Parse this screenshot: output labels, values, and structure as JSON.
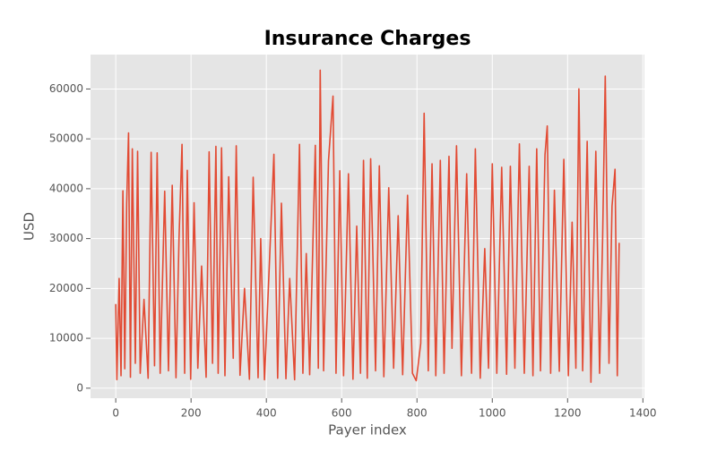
{
  "chart_data": {
    "type": "line",
    "title": "Insurance Charges",
    "xlabel": "Payer index",
    "ylabel": "USD",
    "x": [
      0,
      3,
      9,
      14,
      19,
      24,
      29,
      34,
      39,
      44,
      52,
      58,
      65,
      75,
      86,
      94,
      103,
      110,
      118,
      130,
      140,
      150,
      160,
      168,
      176,
      183,
      190,
      199,
      208,
      218,
      228,
      240,
      248,
      257,
      266,
      272,
      281,
      290,
      300,
      312,
      320,
      330,
      342,
      355,
      365,
      378,
      385,
      395,
      405,
      420,
      430,
      440,
      452,
      462,
      475,
      488,
      497,
      506,
      515,
      530,
      538,
      543,
      552,
      565,
      577,
      585,
      595,
      605,
      618,
      630,
      640,
      650,
      658,
      668,
      677,
      690,
      700,
      712,
      725,
      738,
      750,
      762,
      775,
      788,
      798,
      810,
      819,
      830,
      840,
      850,
      862,
      872,
      885,
      893,
      905,
      918,
      932,
      945,
      955,
      968,
      980,
      990,
      1000,
      1012,
      1025,
      1038,
      1048,
      1060,
      1072,
      1085,
      1098,
      1108,
      1118,
      1128,
      1140,
      1146,
      1155,
      1165,
      1178,
      1190,
      1202,
      1212,
      1222,
      1230,
      1240,
      1252,
      1262,
      1275,
      1285,
      1293,
      1300,
      1310,
      1318,
      1326,
      1332,
      1337
    ],
    "series": [
      {
        "color": "#e24a33",
        "values": [
          16885,
          1726,
          22000,
          2500,
          39600,
          3900,
          37000,
          51194,
          2200,
          48000,
          5000,
          47500,
          3000,
          17800,
          2000,
          47300,
          4500,
          47200,
          3000,
          39500,
          3500,
          40700,
          2100,
          30000,
          48900,
          3000,
          43700,
          1800,
          37200,
          4000,
          24500,
          2200,
          47400,
          5000,
          48500,
          3000,
          48200,
          2500,
          42400,
          6000,
          48600,
          2600,
          20000,
          1800,
          42300,
          2100,
          30000,
          1700,
          19500,
          46900,
          2000,
          37100,
          1900,
          22000,
          1700,
          48900,
          3000,
          27000,
          2700,
          48700,
          4000,
          63770,
          3500,
          45600,
          58571,
          3000,
          43600,
          2500,
          43000,
          1800,
          32500,
          3000,
          45700,
          2000,
          46000,
          3500,
          44600,
          2300,
          40200,
          4000,
          34600,
          2700,
          38700,
          3000,
          1500,
          9000,
          55135,
          3500,
          45000,
          2500,
          45700,
          3000,
          46500,
          8000,
          48600,
          2500,
          43000,
          3000,
          48000,
          2000,
          28000,
          4000,
          45000,
          3000,
          44300,
          2800,
          44500,
          4000,
          49000,
          3000,
          44500,
          2500,
          48000,
          3500,
          46800,
          52590,
          3000,
          39700,
          3400,
          45900,
          2500,
          33300,
          4000,
          60021,
          3500,
          49500,
          1200,
          47500,
          3000,
          30000,
          62592,
          5000,
          36500,
          43900,
          2500,
          29141
        ]
      }
    ],
    "xlim": [
      -67,
      1404
    ],
    "ylim": [
      -2010,
      66900
    ],
    "xticks": [
      0,
      200,
      400,
      600,
      800,
      1000,
      1200,
      1400
    ],
    "yticks": [
      0,
      10000,
      20000,
      30000,
      40000,
      50000,
      60000
    ],
    "grid": true
  }
}
